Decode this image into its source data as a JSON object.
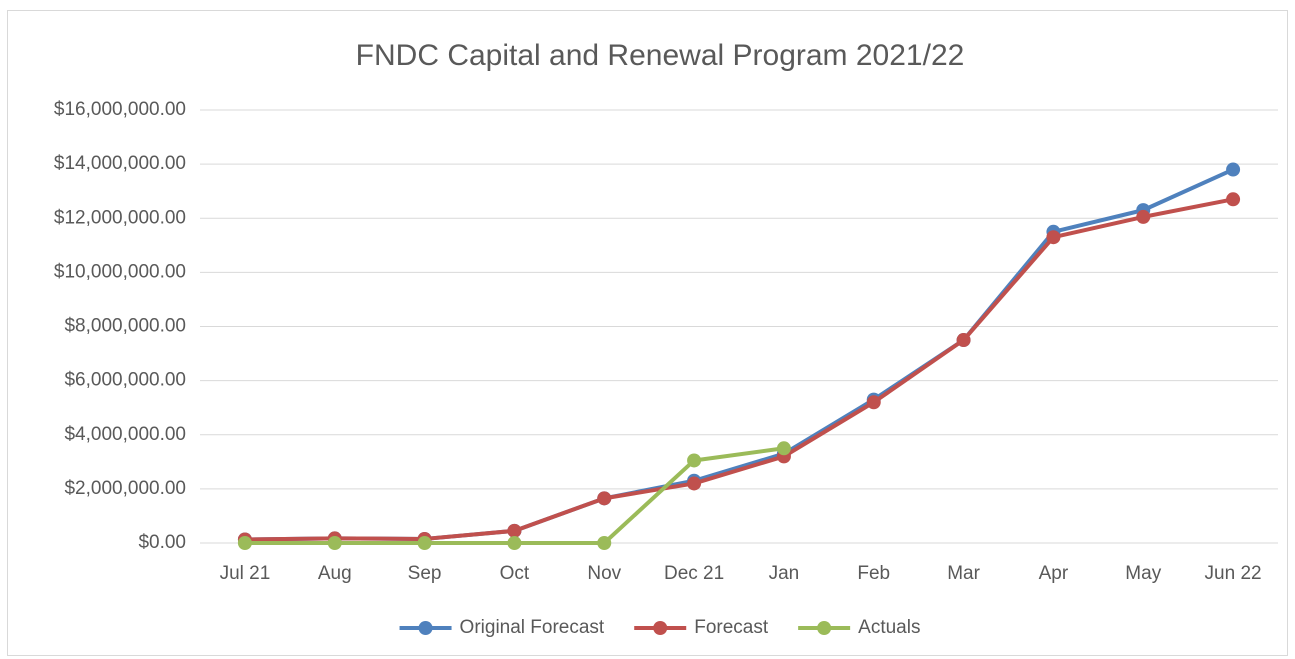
{
  "chart_data": {
    "type": "line",
    "title": "FNDC Capital and Renewal Program 2021/22",
    "categories": [
      "Jul 21",
      "Aug",
      "Sep",
      "Oct",
      "Nov",
      "Dec 21",
      "Jan",
      "Feb",
      "Mar",
      "Apr",
      "May",
      "Jun 22"
    ],
    "series": [
      {
        "name": "Original Forecast",
        "color": "#4f81bd",
        "values": [
          130000,
          170000,
          150000,
          450000,
          1650000,
          2300000,
          3300000,
          5300000,
          7500000,
          11500000,
          12300000,
          13800000
        ]
      },
      {
        "name": "Forecast",
        "color": "#c0504d",
        "values": [
          130000,
          170000,
          150000,
          450000,
          1650000,
          2200000,
          3200000,
          5200000,
          7500000,
          11300000,
          12050000,
          12700000
        ]
      },
      {
        "name": "Actuals",
        "color": "#9bbb59",
        "values": [
          0,
          0,
          0,
          0,
          0,
          3050000,
          3500000,
          null,
          null,
          null,
          null,
          null
        ]
      }
    ],
    "ylim": [
      0,
      16000000
    ],
    "yticks": [
      {
        "value": 0,
        "label": "$0.00"
      },
      {
        "value": 2000000,
        "label": "$2,000,000.00"
      },
      {
        "value": 4000000,
        "label": "$4,000,000.00"
      },
      {
        "value": 6000000,
        "label": "$6,000,000.00"
      },
      {
        "value": 8000000,
        "label": "$8,000,000.00"
      },
      {
        "value": 10000000,
        "label": "$10,000,000.00"
      },
      {
        "value": 12000000,
        "label": "$12,000,000.00"
      },
      {
        "value": 14000000,
        "label": "$14,000,000.00"
      },
      {
        "value": 16000000,
        "label": "$16,000,000.00"
      }
    ],
    "grid": true,
    "legend": "bottom"
  }
}
